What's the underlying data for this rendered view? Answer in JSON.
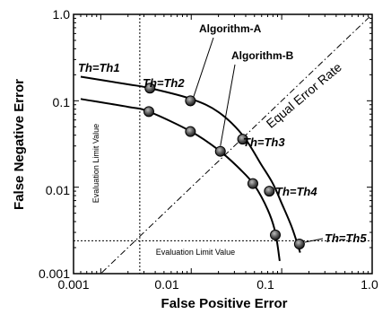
{
  "chart_data": {
    "type": "line",
    "xscale": "log",
    "yscale": "log",
    "xlim": [
      0.0005,
      1.0
    ],
    "ylim": [
      0.001,
      1.0
    ],
    "xlabel": "False Positive Error",
    "ylabel": "False Negative Error",
    "x_ticks": [
      "0.001",
      "0.01",
      "0.1",
      "1.0"
    ],
    "y_ticks": [
      "0.001",
      "0.01",
      "0.1",
      "1.0"
    ],
    "grid": false,
    "series": [
      {
        "name": "Algorithm-A",
        "curve": [
          [
            0.0006,
            0.19
          ],
          [
            0.002,
            0.155
          ],
          [
            0.0035,
            0.14
          ],
          [
            0.01,
            0.105
          ],
          [
            0.02,
            0.074
          ],
          [
            0.037,
            0.04
          ],
          [
            0.06,
            0.018
          ],
          [
            0.08,
            0.011
          ],
          [
            0.1,
            0.0065
          ],
          [
            0.13,
            0.0034
          ],
          [
            0.16,
            0.00175
          ]
        ],
        "points": [
          {
            "x": 0.0035,
            "y": 0.14,
            "label": "Th=Th2"
          },
          {
            "x": 0.0098,
            "y": 0.1
          },
          {
            "x": 0.037,
            "y": 0.036,
            "label": "Th=Th3"
          },
          {
            "x": 0.073,
            "y": 0.009,
            "label": "Th=Th4"
          },
          {
            "x": 0.157,
            "y": 0.0022,
            "label": "Th=Th5"
          }
        ]
      },
      {
        "name": "Algorithm-B",
        "curve": [
          [
            0.0006,
            0.105
          ],
          [
            0.002,
            0.085
          ],
          [
            0.0034,
            0.075
          ],
          [
            0.01,
            0.044
          ],
          [
            0.02,
            0.027
          ],
          [
            0.035,
            0.016
          ],
          [
            0.05,
            0.0105
          ],
          [
            0.07,
            0.0055
          ],
          [
            0.085,
            0.003
          ],
          [
            0.095,
            0.0014
          ]
        ],
        "points": [
          {
            "x": 0.0034,
            "y": 0.075
          },
          {
            "x": 0.0098,
            "y": 0.044
          },
          {
            "x": 0.021,
            "y": 0.026
          },
          {
            "x": 0.048,
            "y": 0.011
          },
          {
            "x": 0.085,
            "y": 0.0028
          }
        ]
      }
    ],
    "reference_lines": {
      "equal_error_rate": "Equal Error Rate",
      "evaluation_limit_x": 0.0027,
      "evaluation_limit_y": 0.0024,
      "evaluation_limit_label": "Evaluation Limit Value"
    },
    "annotations": {
      "th1": "Th=Th1",
      "algorithm_a": "Algorithm-A",
      "algorithm_b": "Algorithm-B"
    }
  }
}
